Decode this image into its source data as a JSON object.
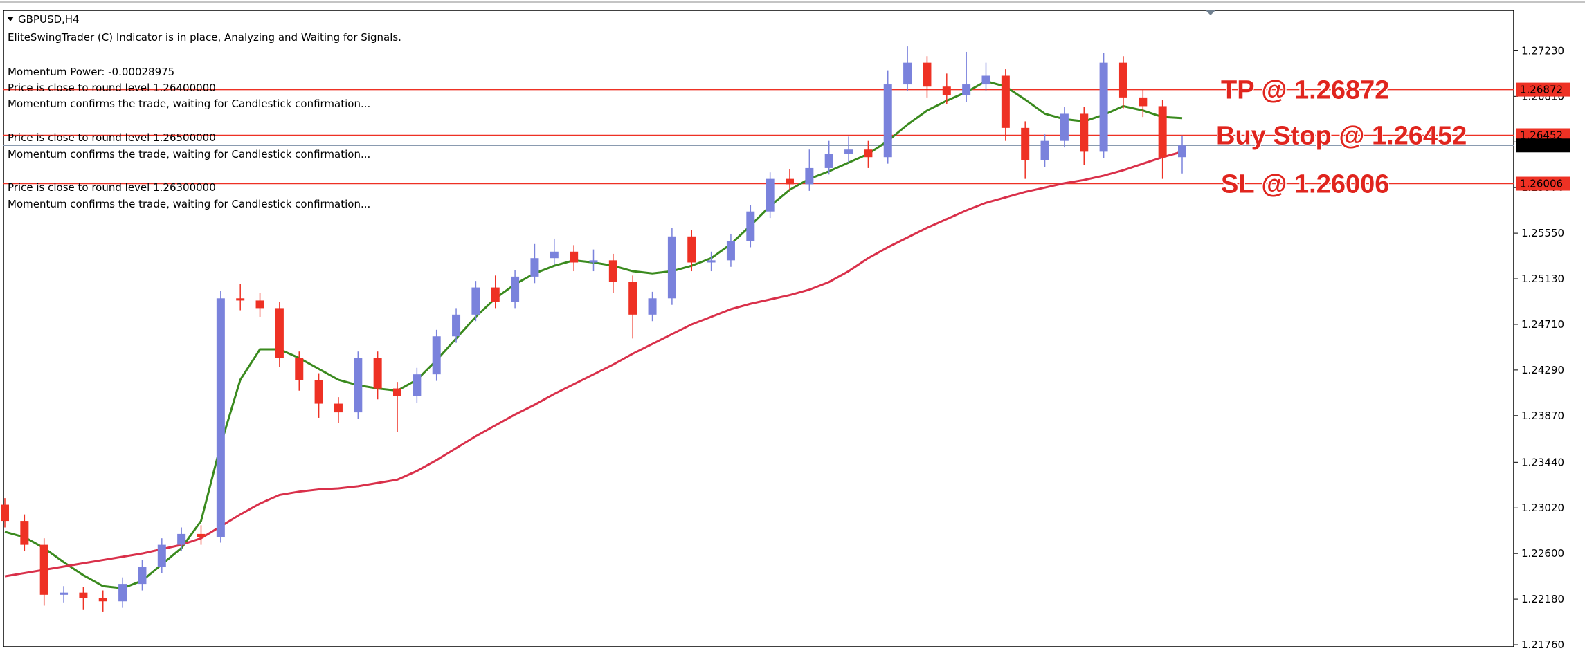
{
  "header": {
    "symbol": "GBPUSD,H4",
    "status": "EliteSwingTrader (C) Indicator is in place, Analyzing and Waiting for Signals.",
    "momentum_power": "Momentum Power: -0.00028975",
    "messages": [
      {
        "round_level": "Price is close to round level 1.26400000",
        "confirm": "Momentum confirms the trade, waiting for Candlestick confirmation..."
      },
      {
        "round_level": "Price is close to round level 1.26500000",
        "confirm": "Momentum confirms the trade, waiting for Candlestick confirmation..."
      },
      {
        "round_level": "Price is close to round level 1.26300000",
        "confirm": "Momentum confirms the trade, waiting for Candlestick confirmation..."
      }
    ]
  },
  "chart_data": {
    "type": "candlestick",
    "open": [
      1.2305,
      1.229,
      1.2268,
      1.2222,
      1.2224,
      1.2219,
      1.2216,
      1.2232,
      1.2248,
      1.2268,
      1.2278,
      1.2275,
      1.2495,
      1.2493,
      1.2486,
      1.244,
      1.242,
      1.2398,
      1.239,
      1.244,
      1.2412,
      1.2405,
      1.2425,
      1.246,
      1.248,
      1.2505,
      1.2492,
      1.2515,
      1.2532,
      1.2538,
      1.2528,
      1.253,
      1.251,
      1.248,
      1.2495,
      1.2552,
      1.2528,
      1.253,
      1.2548,
      1.2575,
      1.2605,
      1.26,
      1.2615,
      1.2628,
      1.2632,
      1.2625,
      1.2692,
      1.2712,
      1.269,
      1.2682,
      1.2692,
      1.27,
      1.2652,
      1.2622,
      1.264,
      1.2665,
      1.263,
      1.2712,
      1.268,
      1.2672,
      1.2625
    ],
    "high": [
      1.2311,
      1.2296,
      1.2274,
      1.223,
      1.2229,
      1.2226,
      1.2238,
      1.2254,
      1.2274,
      1.2284,
      1.2286,
      1.2502,
      1.2508,
      1.25,
      1.2492,
      1.2446,
      1.2426,
      1.2404,
      1.2446,
      1.2446,
      1.2418,
      1.2431,
      1.2466,
      1.2486,
      1.2511,
      1.2516,
      1.2521,
      1.2545,
      1.255,
      1.2544,
      1.254,
      1.2536,
      1.2516,
      1.2501,
      1.256,
      1.2558,
      1.2538,
      1.2554,
      1.2581,
      1.2611,
      1.2614,
      1.2632,
      1.264,
      1.2644,
      1.264,
      1.2705,
      1.2727,
      1.2718,
      1.2702,
      1.2722,
      1.2712,
      1.2706,
      1.2658,
      1.2646,
      1.2671,
      1.2671,
      1.2721,
      1.2718,
      1.2688,
      1.2678,
      1.2645
    ],
    "low": [
      1.2284,
      1.2262,
      1.2212,
      1.2215,
      1.2208,
      1.2206,
      1.221,
      1.2226,
      1.2242,
      1.2262,
      1.2268,
      1.227,
      1.2484,
      1.2478,
      1.2432,
      1.241,
      1.2385,
      1.238,
      1.2384,
      1.2402,
      1.2372,
      1.2399,
      1.2419,
      1.2454,
      1.2474,
      1.2486,
      1.2486,
      1.2509,
      1.2526,
      1.252,
      1.252,
      1.25,
      1.2458,
      1.2474,
      1.2489,
      1.252,
      1.252,
      1.2524,
      1.2542,
      1.2569,
      1.2594,
      1.2594,
      1.2609,
      1.262,
      1.2615,
      1.2619,
      1.2686,
      1.268,
      1.2674,
      1.2676,
      1.2686,
      1.264,
      1.2605,
      1.2616,
      1.2634,
      1.2618,
      1.2624,
      1.267,
      1.2662,
      1.2605,
      1.261
    ],
    "close": [
      1.229,
      1.2268,
      1.2222,
      1.2224,
      1.2219,
      1.2216,
      1.2232,
      1.2248,
      1.2268,
      1.2278,
      1.2275,
      1.2495,
      1.2493,
      1.2486,
      1.244,
      1.242,
      1.2398,
      1.239,
      1.244,
      1.2412,
      1.2405,
      1.2425,
      1.246,
      1.248,
      1.2505,
      1.2492,
      1.2515,
      1.2532,
      1.2538,
      1.2528,
      1.253,
      1.251,
      1.248,
      1.2495,
      1.2552,
      1.2528,
      1.253,
      1.2548,
      1.2575,
      1.2605,
      1.26,
      1.2615,
      1.2628,
      1.2632,
      1.2625,
      1.2692,
      1.2712,
      1.269,
      1.2682,
      1.2692,
      1.27,
      1.2652,
      1.2622,
      1.264,
      1.2665,
      1.263,
      1.2712,
      1.268,
      1.2672,
      1.2625,
      1.26358
    ],
    "up_color": "#7a82dc",
    "down_color": "#ee3124",
    "lines": [
      {
        "color": "#3a8a1e",
        "values": [
          1.228,
          1.2275,
          1.2265,
          1.2252,
          1.224,
          1.223,
          1.2228,
          1.2235,
          1.225,
          1.2265,
          1.229,
          1.236,
          1.242,
          1.2448,
          1.2448,
          1.244,
          1.243,
          1.242,
          1.2415,
          1.2412,
          1.241,
          1.242,
          1.2438,
          1.2458,
          1.2478,
          1.2495,
          1.2508,
          1.2518,
          1.2525,
          1.253,
          1.2528,
          1.2525,
          1.252,
          1.2518,
          1.252,
          1.2525,
          1.2532,
          1.2545,
          1.2562,
          1.258,
          1.2595,
          1.2605,
          1.2612,
          1.262,
          1.2628,
          1.264,
          1.2655,
          1.2668,
          1.2677,
          1.2685,
          1.2695,
          1.269,
          1.2678,
          1.2665,
          1.266,
          1.2658,
          1.2664,
          1.2672,
          1.2668,
          1.2662,
          1.2661
        ]
      },
      {
        "color": "#d9304a",
        "values": [
          1.2239,
          1.2242,
          1.2245,
          1.2248,
          1.2251,
          1.2254,
          1.2257,
          1.226,
          1.2264,
          1.2268,
          1.2274,
          1.2285,
          1.2296,
          1.2306,
          1.2314,
          1.2317,
          1.2319,
          1.232,
          1.2322,
          1.2325,
          1.2328,
          1.2336,
          1.2346,
          1.2357,
          1.2368,
          1.2378,
          1.2388,
          1.2397,
          1.2407,
          1.2416,
          1.2425,
          1.2434,
          1.2444,
          1.2453,
          1.2462,
          1.2471,
          1.2478,
          1.2485,
          1.249,
          1.2494,
          1.2498,
          1.2503,
          1.251,
          1.252,
          1.2532,
          1.2542,
          1.2551,
          1.256,
          1.2568,
          1.2576,
          1.2583,
          1.2588,
          1.2593,
          1.2597,
          1.2601,
          1.2604,
          1.2608,
          1.2613,
          1.2619,
          1.2625,
          1.263
        ]
      }
    ],
    "levels": [
      {
        "value": 1.26872,
        "color": "#ee3124"
      },
      {
        "value": 1.26452,
        "color": "#ee3124"
      },
      {
        "value": 1.26358,
        "color": "#000000",
        "line_color": "#8a9bb0"
      },
      {
        "value": 1.26006,
        "color": "#ee3124"
      }
    ],
    "annotations": [
      {
        "text": "TP @ 1.26872",
        "value": 1.26872
      },
      {
        "text": "Buy Stop @ 1.26452",
        "value": 1.26452
      },
      {
        "text": "SL @ 1.26006",
        "value": 1.26006
      }
    ],
    "annotation_color": "#e0251e",
    "ylim": [
      1.21741,
      1.27602
    ],
    "yticks": [
      {
        "value": 1.2723,
        "label": "1.27230"
      },
      {
        "value": 1.2681,
        "label": "1.26810"
      },
      {
        "value": 1.2639,
        "label": "1.26390"
      },
      {
        "value": 1.2597,
        "label": "1.25970"
      },
      {
        "value": 1.2555,
        "label": "1.25550"
      },
      {
        "value": 1.2513,
        "label": "1.25130"
      },
      {
        "value": 1.2471,
        "label": "1.24710"
      },
      {
        "value": 1.2429,
        "label": "1.24290"
      },
      {
        "value": 1.2387,
        "label": "1.23870"
      },
      {
        "value": 1.2344,
        "label": "1.23440"
      },
      {
        "value": 1.2302,
        "label": "1.23020"
      },
      {
        "value": 1.226,
        "label": "1.22600"
      },
      {
        "value": 1.2218,
        "label": "1.22180"
      },
      {
        "value": 1.2176,
        "label": "1.21760"
      }
    ]
  }
}
